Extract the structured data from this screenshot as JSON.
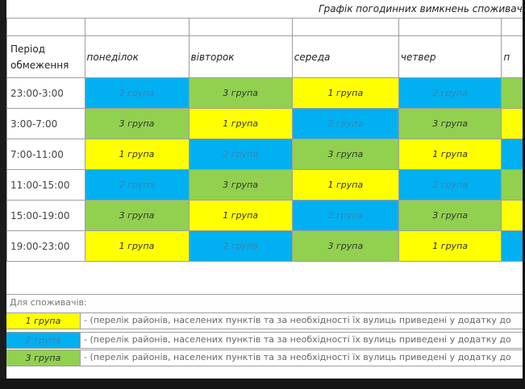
{
  "title": "Графік погодинних вимкнень споживачі",
  "header": {
    "period": "Період обмеження",
    "days": [
      "понеділок",
      "вівторок",
      "середа",
      "четвер",
      "п"
    ]
  },
  "rows": [
    {
      "time": "23:00-3:00",
      "groups": [
        "2 група",
        "3 група",
        "1 група",
        "2 група",
        ""
      ]
    },
    {
      "time": "3:00-7:00",
      "groups": [
        "3 група",
        "1 група",
        "2 група",
        "3 група",
        ""
      ]
    },
    {
      "time": "7:00-11:00",
      "groups": [
        "1 група",
        "2 група",
        "3 група",
        "1 група",
        ""
      ]
    },
    {
      "time": "11:00-15:00",
      "groups": [
        "2 група",
        "3 група",
        "1 група",
        "2 група",
        ""
      ]
    },
    {
      "time": "15:00-19:00",
      "groups": [
        "3 група",
        "1 група",
        "2 група",
        "3 група",
        ""
      ]
    },
    {
      "time": "19:00-23:00",
      "groups": [
        "1 група",
        "2 група",
        "3 група",
        "1 група",
        ""
      ]
    }
  ],
  "group_colors": {
    "1": "#ffff00",
    "2": "#00b0f0",
    "3": "#92d050"
  },
  "legend": {
    "heading": "Для споживачів:",
    "items": [
      {
        "label": "1 група",
        "text": "- (перелік районів, населених пунктів та за необхідності їх вулиць приведені у додатку до"
      },
      {
        "label": "2 група",
        "text": "- (перелік районів, населених пунктів та за необхідності їх вулиць приведені у додатку до"
      },
      {
        "label": "3 група",
        "text": "- (перелік районів, населених пунктів та за необхідності їх вулиць приведені у додатку до"
      }
    ]
  }
}
